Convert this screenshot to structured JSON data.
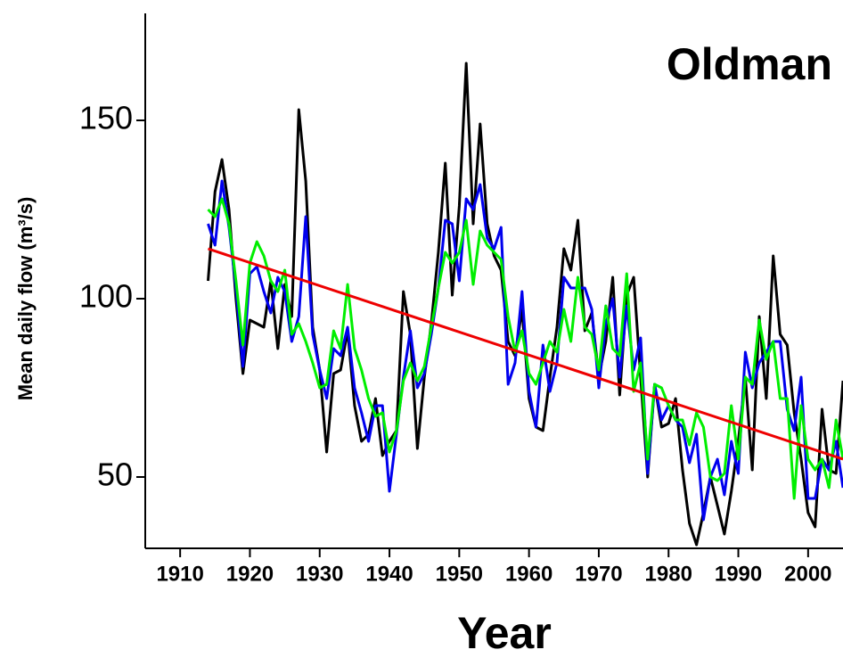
{
  "chart_data": {
    "type": "line",
    "title": "Oldman",
    "x_label": "Year",
    "y_label": "Mean daily flow (m³/s)",
    "xlim": [
      1905,
      2005
    ],
    "ylim": [
      30,
      180
    ],
    "xticks": [
      1910,
      1920,
      1930,
      1940,
      1950,
      1960,
      1970,
      1980,
      1990,
      2000
    ],
    "yticks": [
      50,
      100,
      150
    ],
    "x": [
      1914,
      1915,
      1916,
      1917,
      1918,
      1919,
      1920,
      1921,
      1922,
      1923,
      1924,
      1925,
      1926,
      1927,
      1928,
      1929,
      1930,
      1931,
      1932,
      1933,
      1934,
      1935,
      1936,
      1937,
      1938,
      1939,
      1940,
      1941,
      1942,
      1943,
      1944,
      1945,
      1946,
      1947,
      1948,
      1949,
      1950,
      1951,
      1952,
      1953,
      1954,
      1955,
      1956,
      1957,
      1958,
      1959,
      1960,
      1961,
      1962,
      1963,
      1964,
      1965,
      1966,
      1967,
      1968,
      1969,
      1970,
      1971,
      1972,
      1973,
      1974,
      1975,
      1976,
      1977,
      1978,
      1979,
      1980,
      1981,
      1982,
      1983,
      1984,
      1985,
      1986,
      1987,
      1988,
      1989,
      1990,
      1991,
      1992,
      1993,
      1994,
      1995,
      1996,
      1997,
      1998,
      1999,
      2000,
      2001,
      2002,
      2003,
      2004,
      2005
    ],
    "series": [
      {
        "color": "#000000",
        "values": [
          105,
          130,
          139,
          125,
          100,
          79,
          94,
          93,
          92,
          105,
          86,
          104,
          95,
          153,
          133,
          92,
          80,
          57,
          79,
          80,
          91,
          70,
          60,
          62,
          72,
          56,
          60,
          63,
          102,
          90,
          58,
          78,
          93,
          113,
          138,
          101,
          126,
          166,
          121,
          149,
          121,
          112,
          108,
          88,
          84,
          97,
          72,
          64,
          63,
          78,
          92,
          114,
          108,
          122,
          91,
          96,
          78,
          88,
          106,
          73,
          101,
          106,
          78,
          50,
          76,
          64,
          65,
          72,
          52,
          37,
          31,
          40,
          50,
          42,
          34,
          46,
          60,
          78,
          52,
          95,
          72,
          112,
          90,
          87,
          68,
          55,
          40,
          36,
          69,
          52,
          51,
          77
        ]
      },
      {
        "color": "#0000ee",
        "values": [
          121,
          115,
          133,
          120,
          103,
          81,
          107,
          109,
          102,
          96,
          106,
          102,
          88,
          95,
          123,
          90,
          80,
          72,
          86,
          84,
          92,
          75,
          68,
          60,
          70,
          70,
          46,
          62,
          78,
          91,
          75,
          79,
          90,
          103,
          122,
          121,
          105,
          128,
          125,
          132,
          117,
          114,
          120,
          76,
          82,
          102,
          74,
          64,
          87,
          74,
          82,
          106,
          103,
          103,
          103,
          97,
          75,
          93,
          100,
          78,
          98,
          80,
          89,
          51,
          76,
          66,
          70,
          66,
          64,
          54,
          62,
          38,
          50,
          55,
          45,
          60,
          51,
          85,
          75,
          82,
          85,
          88,
          88,
          69,
          63,
          78,
          44,
          44,
          55,
          52,
          60,
          47
        ]
      },
      {
        "color": "#00ee00",
        "values": [
          125,
          123,
          128,
          121,
          105,
          87,
          110,
          116,
          112,
          105,
          102,
          108,
          90,
          93,
          88,
          82,
          75,
          76,
          91,
          86,
          104,
          86,
          80,
          72,
          67,
          68,
          57,
          63,
          77,
          82,
          77,
          81,
          92,
          103,
          113,
          110,
          113,
          122,
          104,
          119,
          115,
          113,
          111,
          95,
          85,
          91,
          79,
          76,
          82,
          88,
          85,
          97,
          88,
          106,
          92,
          90,
          80,
          98,
          86,
          84,
          107,
          74,
          82,
          55,
          76,
          75,
          70,
          66,
          66,
          59,
          68,
          64,
          50,
          49,
          51,
          70,
          55,
          78,
          76,
          94,
          83,
          88,
          72,
          72,
          44,
          70,
          55,
          52,
          55,
          47,
          66,
          55
        ]
      }
    ],
    "trend": {
      "color": "#ee0000",
      "x": [
        1914,
        2005
      ],
      "values": [
        114,
        55
      ]
    }
  }
}
